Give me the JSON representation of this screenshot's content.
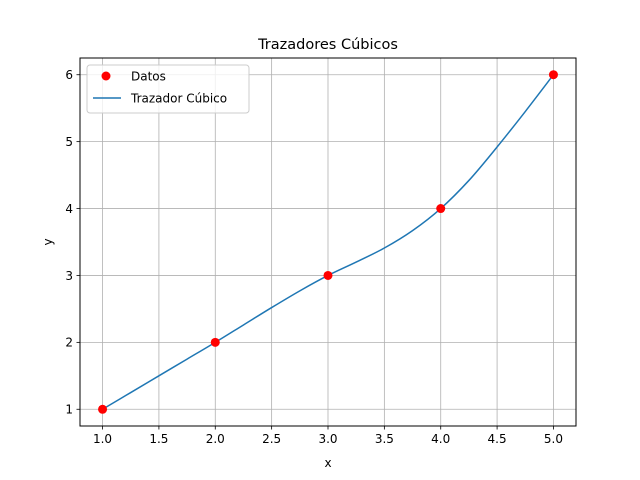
{
  "chart_data": {
    "type": "line",
    "title": "Trazadores Cúbicos",
    "xlabel": "x",
    "ylabel": "y",
    "xlim": [
      0.8,
      5.2
    ],
    "ylim": [
      0.75,
      6.25
    ],
    "xticks": [
      "1.0",
      "1.5",
      "2.0",
      "2.5",
      "3.0",
      "3.5",
      "4.0",
      "4.5",
      "5.0"
    ],
    "yticks": [
      "1",
      "2",
      "3",
      "4",
      "5",
      "6"
    ],
    "grid": true,
    "legend": "top-left",
    "series": [
      {
        "name": "Datos",
        "kind": "scatter",
        "color": "#ff0000",
        "x": [
          1,
          2,
          3,
          4,
          5
        ],
        "y": [
          1,
          2,
          3,
          4,
          6
        ]
      },
      {
        "name": "Trazador Cúbico",
        "kind": "line",
        "color": "#1f77b4",
        "x": [
          1.0,
          1.25,
          1.5,
          1.75,
          2.0,
          2.25,
          2.5,
          2.75,
          3.0,
          3.25,
          3.5,
          3.75,
          4.0,
          4.25,
          4.5,
          4.75,
          5.0
        ],
        "y": [
          1.0,
          1.25,
          1.5,
          1.75,
          2.0,
          2.26,
          2.52,
          2.77,
          3.0,
          3.2,
          3.41,
          3.67,
          4.0,
          4.42,
          4.92,
          5.45,
          6.0
        ]
      }
    ]
  }
}
